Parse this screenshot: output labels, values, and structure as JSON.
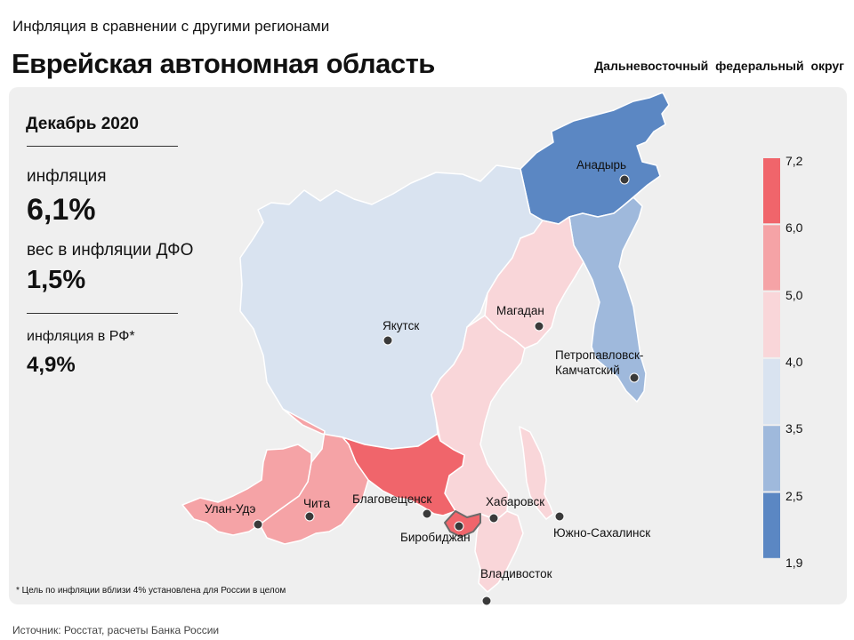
{
  "header": {
    "subtitle": "Инфляция в сравнении с другими регионами",
    "title": "Еврейская автономная область",
    "district": "Дальневосточный федеральный округ"
  },
  "stats": {
    "date": "Декабрь 2020",
    "inflation_label": "инфляция",
    "inflation_value": "6,1%",
    "weight_label": "вес в инфляции ДФО",
    "weight_value": "1,5%",
    "rf_label": "инфляция в РФ*",
    "rf_value": "4,9%"
  },
  "legend": {
    "ticks": [
      "7,2",
      "6,0",
      "5,0",
      "4,0",
      "3,5",
      "2,5",
      "1,9"
    ],
    "colors": [
      "#f0656b",
      "#f5a3a6",
      "#f9d6d9",
      "#d9e3f0",
      "#9fb9dc",
      "#5b87c3"
    ]
  },
  "regions": [
    {
      "name": "Чукотка",
      "bin": 5,
      "color": "#5b87c3"
    },
    {
      "name": "Камчатка",
      "bin": 4,
      "color": "#9fb9dc"
    },
    {
      "name": "Якутия",
      "bin": 3,
      "color": "#d9e3f0"
    },
    {
      "name": "Магаданская область",
      "bin": 2,
      "color": "#f9d6d9"
    },
    {
      "name": "Хабаровский край",
      "bin": 2,
      "color": "#f9d6d9"
    },
    {
      "name": "Приморье",
      "bin": 2,
      "color": "#f9d6d9"
    },
    {
      "name": "Сахалин",
      "bin": 2,
      "color": "#f9d6d9"
    },
    {
      "name": "Амурская область",
      "bin": 0,
      "color": "#f0656b"
    },
    {
      "name": "Еврейская АО",
      "bin": 0,
      "color": "#f0656b"
    },
    {
      "name": "Забайкалье",
      "bin": 1,
      "color": "#f5a3a6"
    },
    {
      "name": "Бурятия",
      "bin": 1,
      "color": "#f5a3a6"
    }
  ],
  "cities": [
    {
      "name": "Анадырь"
    },
    {
      "name": "Якутск"
    },
    {
      "name": "Магадан"
    },
    {
      "name": "Петропавловск-Камчатский"
    },
    {
      "name": "Благовещенск"
    },
    {
      "name": "Хабаровск"
    },
    {
      "name": "Биробиджан"
    },
    {
      "name": "Южно-Сахалинск"
    },
    {
      "name": "Владивосток"
    },
    {
      "name": "Чита"
    },
    {
      "name": "Улан-Удэ"
    }
  ],
  "footnote": "* Цель по инфляции вблизи 4% установлена для России в целом",
  "source": "Источник: Росстат, расчеты Банка России"
}
